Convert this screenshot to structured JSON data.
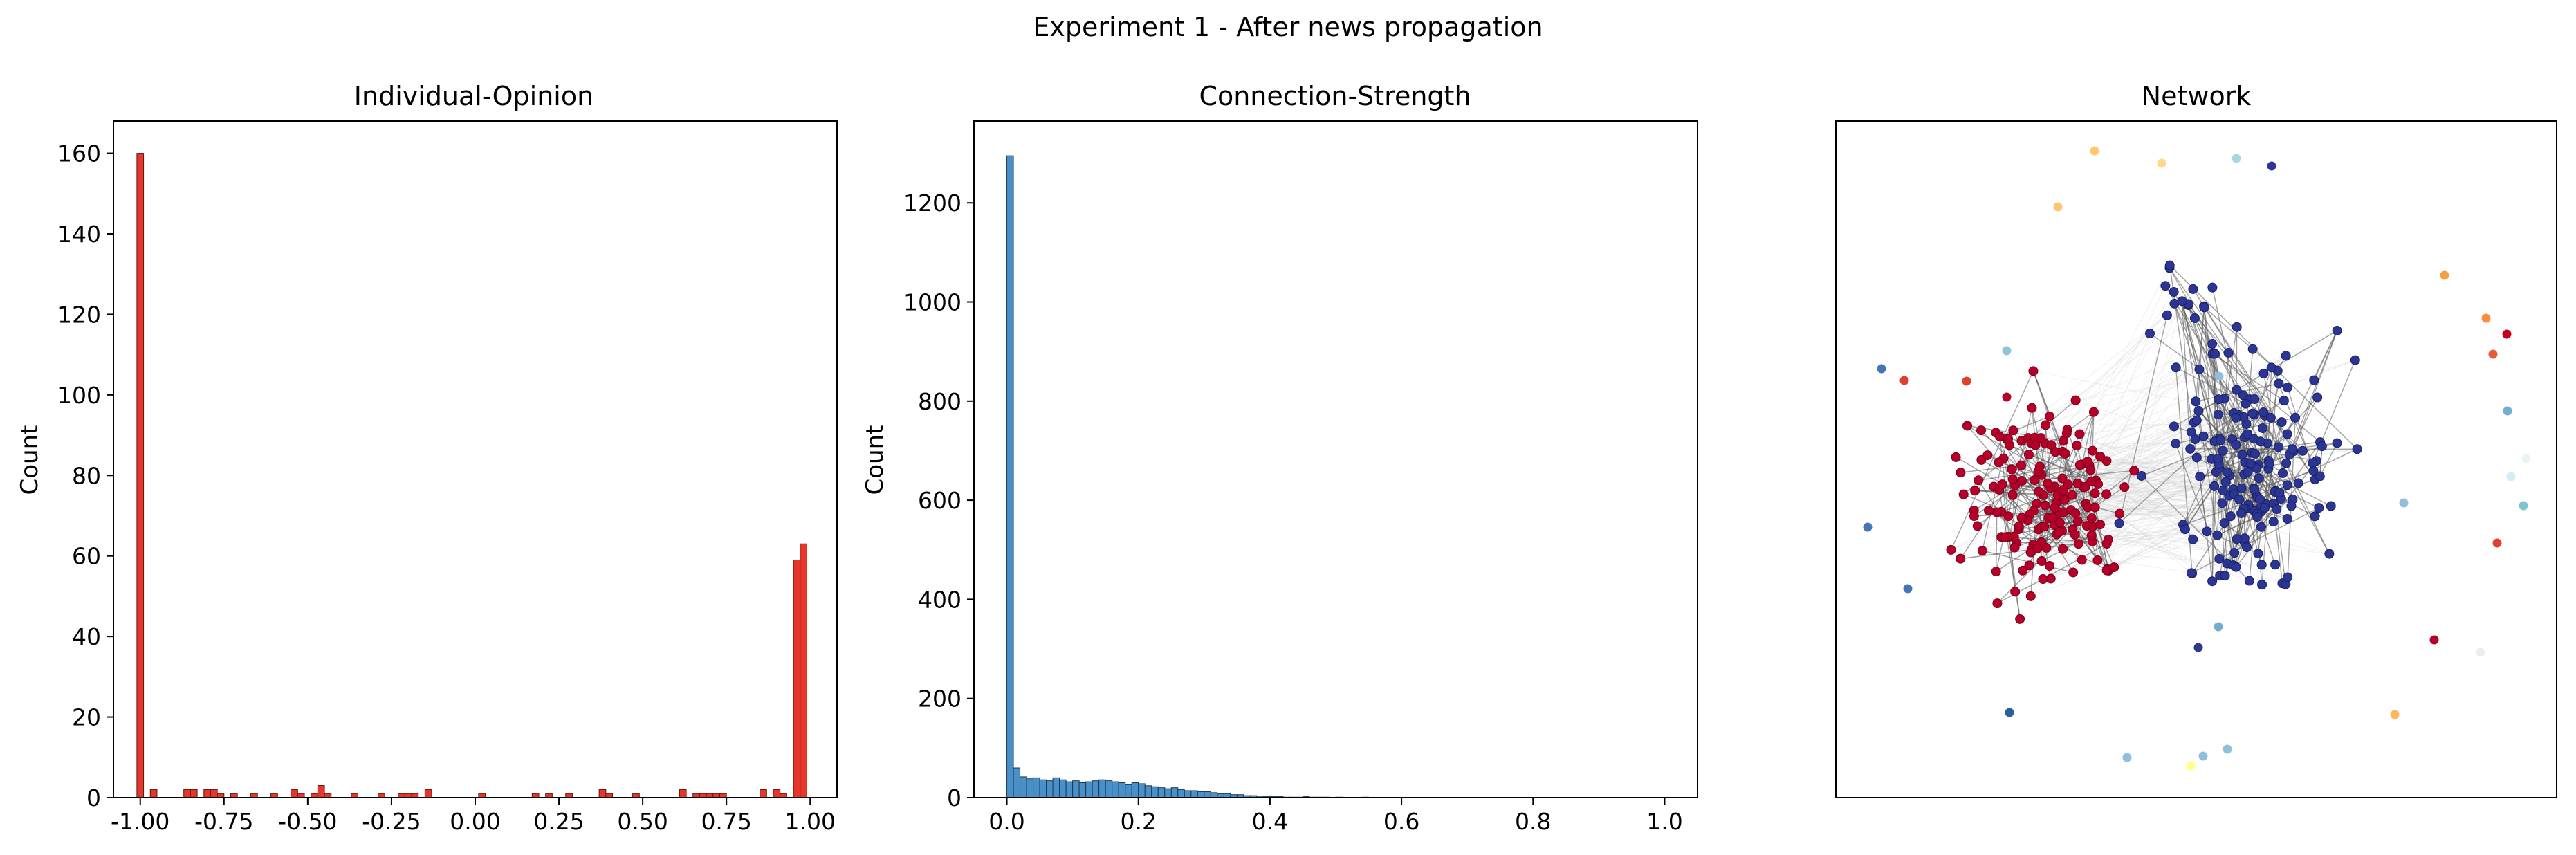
{
  "figure": {
    "suptitle": "Experiment 1 - After news propagation"
  },
  "colors": {
    "opinion_bar": "#e8352b",
    "strength_bar": "#4a90c8",
    "positive_node": "#2b3593",
    "negative_node": "#b5002a",
    "edge": "#555555"
  },
  "chart_data": [
    {
      "type": "bar",
      "title": "Individual-Opinion",
      "xlabel": "",
      "ylabel": "Count",
      "xlim": [
        -1.08,
        1.08
      ],
      "ylim": [
        0,
        168
      ],
      "xticks": [
        "-1.00",
        "-0.75",
        "-0.50",
        "-0.25",
        "0.00",
        "0.25",
        "0.50",
        "0.75",
        "1.00"
      ],
      "xtick_values": [
        -1.0,
        -0.75,
        -0.5,
        -0.25,
        0.0,
        0.25,
        0.5,
        0.75,
        1.0
      ],
      "yticks": [
        "0",
        "20",
        "40",
        "60",
        "80",
        "100",
        "120",
        "140",
        "160"
      ],
      "ytick_values": [
        0,
        20,
        40,
        60,
        80,
        100,
        120,
        140,
        160
      ],
      "bin_width": 0.02,
      "bins": [
        {
          "x": -1.0,
          "count": 160
        },
        {
          "x": -0.96,
          "count": 2
        },
        {
          "x": -0.86,
          "count": 2
        },
        {
          "x": -0.84,
          "count": 2
        },
        {
          "x": -0.8,
          "count": 2
        },
        {
          "x": -0.78,
          "count": 2
        },
        {
          "x": -0.76,
          "count": 1
        },
        {
          "x": -0.72,
          "count": 1
        },
        {
          "x": -0.66,
          "count": 1
        },
        {
          "x": -0.6,
          "count": 1
        },
        {
          "x": -0.54,
          "count": 2
        },
        {
          "x": -0.52,
          "count": 1
        },
        {
          "x": -0.48,
          "count": 1
        },
        {
          "x": -0.46,
          "count": 3
        },
        {
          "x": -0.44,
          "count": 1
        },
        {
          "x": -0.36,
          "count": 1
        },
        {
          "x": -0.28,
          "count": 1
        },
        {
          "x": -0.22,
          "count": 1
        },
        {
          "x": -0.2,
          "count": 1
        },
        {
          "x": -0.18,
          "count": 1
        },
        {
          "x": -0.14,
          "count": 2
        },
        {
          "x": 0.02,
          "count": 1
        },
        {
          "x": 0.18,
          "count": 1
        },
        {
          "x": 0.22,
          "count": 1
        },
        {
          "x": 0.28,
          "count": 1
        },
        {
          "x": 0.38,
          "count": 2
        },
        {
          "x": 0.4,
          "count": 1
        },
        {
          "x": 0.48,
          "count": 1
        },
        {
          "x": 0.62,
          "count": 2
        },
        {
          "x": 0.66,
          "count": 1
        },
        {
          "x": 0.68,
          "count": 1
        },
        {
          "x": 0.7,
          "count": 1
        },
        {
          "x": 0.72,
          "count": 1
        },
        {
          "x": 0.74,
          "count": 1
        },
        {
          "x": 0.86,
          "count": 2
        },
        {
          "x": 0.9,
          "count": 2
        },
        {
          "x": 0.92,
          "count": 1
        },
        {
          "x": 0.96,
          "count": 59
        },
        {
          "x": 0.98,
          "count": 63
        }
      ]
    },
    {
      "type": "bar",
      "title": "Connection-Strength",
      "xlabel": "",
      "ylabel": "Count",
      "xlim": [
        -0.05,
        1.05
      ],
      "ylim": [
        0,
        1365
      ],
      "xticks": [
        "0.0",
        "0.2",
        "0.4",
        "0.6",
        "0.8",
        "1.0"
      ],
      "xtick_values": [
        0.0,
        0.2,
        0.4,
        0.6,
        0.8,
        1.0
      ],
      "yticks": [
        "0",
        "200",
        "400",
        "600",
        "800",
        "1000",
        "1200"
      ],
      "ytick_values": [
        0,
        200,
        400,
        600,
        800,
        1000,
        1200
      ],
      "bin_width": 0.01,
      "bin_start": 0.0,
      "counts": [
        1295,
        60,
        42,
        38,
        40,
        36,
        34,
        40,
        36,
        32,
        34,
        30,
        32,
        34,
        36,
        34,
        32,
        30,
        26,
        30,
        28,
        24,
        22,
        20,
        18,
        20,
        16,
        14,
        14,
        12,
        12,
        10,
        8,
        8,
        6,
        6,
        4,
        4,
        3,
        2,
        2,
        2,
        1,
        1,
        1,
        2,
        1,
        1,
        1,
        0,
        1,
        0,
        0,
        0,
        1
      ]
    },
    {
      "type": "scatter",
      "title": "Network",
      "xlabel": "",
      "ylabel": ""
    }
  ]
}
